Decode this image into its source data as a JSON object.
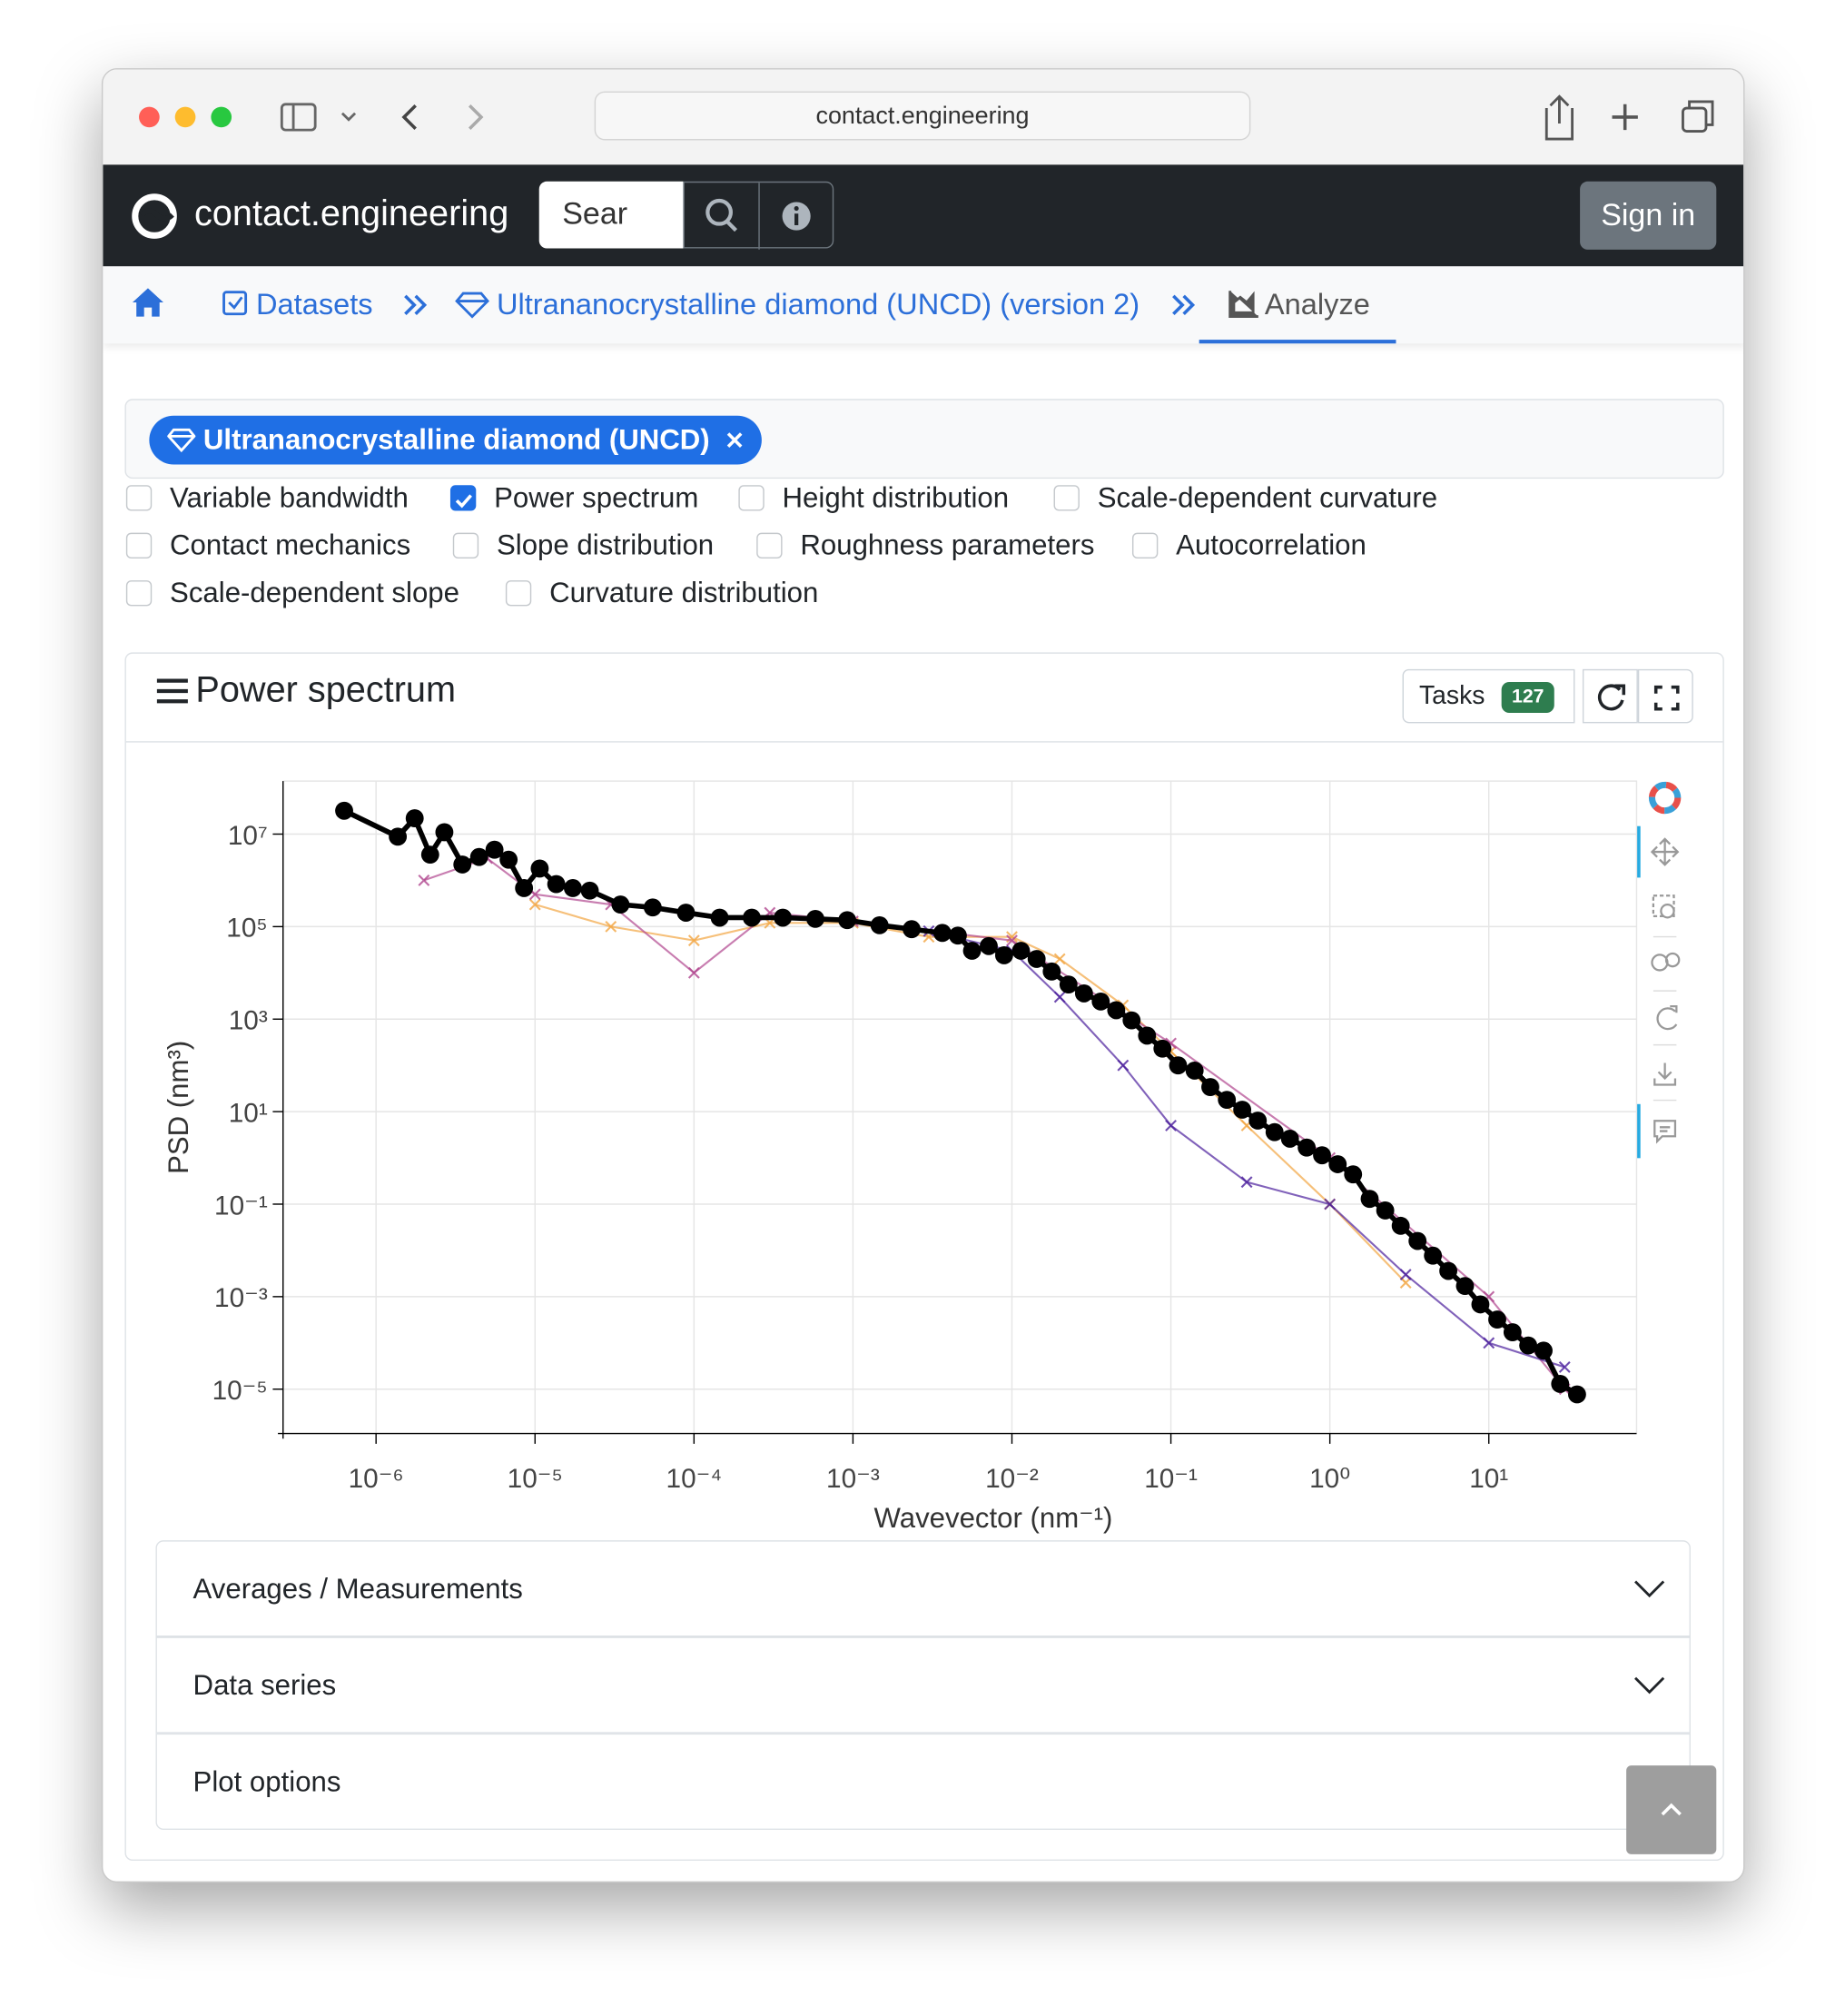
{
  "browser": {
    "url": "contact.engineering"
  },
  "navbar": {
    "brand": "contact.engineering",
    "search_placeholder": "Sear",
    "sign_in": "Sign in"
  },
  "breadcrumbs": [
    "Datasets",
    "Ultrananocrystalline diamond (UNCD) (version 2)",
    "Analyze"
  ],
  "selection_chip": "Ultrananocrystalline diamond (UNCD)",
  "analysis_options": [
    {
      "label": "Variable bandwidth",
      "checked": false
    },
    {
      "label": "Power spectrum",
      "checked": true
    },
    {
      "label": "Height distribution",
      "checked": false
    },
    {
      "label": "Scale-dependent curvature",
      "checked": false
    },
    {
      "label": "Contact mechanics",
      "checked": false
    },
    {
      "label": "Slope distribution",
      "checked": false
    },
    {
      "label": "Roughness parameters",
      "checked": false
    },
    {
      "label": "Autocorrelation",
      "checked": false
    },
    {
      "label": "Scale-dependent slope",
      "checked": false
    },
    {
      "label": "Curvature distribution",
      "checked": false
    }
  ],
  "card": {
    "title": "Power spectrum",
    "tasks_label": "Tasks",
    "tasks_count": 127
  },
  "chart_data": {
    "type": "line",
    "x_label": "Wavevector (nm⁻¹)",
    "y_label": "PSD (nm³)",
    "x_scale": "log",
    "y_scale": "log",
    "grid": true,
    "xlim": [
      2.6e-07,
      85
    ],
    "ylim": [
      1.1e-06,
      140000000.0
    ],
    "xticks": [
      {
        "value": 1e-06,
        "label": "10⁻⁶"
      },
      {
        "value": 1e-05,
        "label": "10⁻⁵"
      },
      {
        "value": 0.0001,
        "label": "10⁻⁴"
      },
      {
        "value": 0.001,
        "label": "10⁻³"
      },
      {
        "value": 0.01,
        "label": "10⁻²"
      },
      {
        "value": 0.1,
        "label": "10⁻¹"
      },
      {
        "value": 1,
        "label": "10⁰"
      },
      {
        "value": 10,
        "label": "10¹"
      }
    ],
    "yticks": [
      {
        "value": 10000000.0,
        "label": "10⁷"
      },
      {
        "value": 100000.0,
        "label": "10⁵"
      },
      {
        "value": 1000,
        "label": "10³"
      },
      {
        "value": 10,
        "label": "10¹"
      },
      {
        "value": 0.1,
        "label": "10⁻¹"
      },
      {
        "value": 0.001,
        "label": "10⁻³"
      },
      {
        "value": 1e-05,
        "label": "10⁻⁵"
      }
    ],
    "series": [
      {
        "color": "#f2a541",
        "marker": "x",
        "x": [
          1e-05,
          3e-05,
          0.0001,
          0.0003,
          0.001,
          0.003,
          0.01,
          0.02,
          0.05,
          0.1,
          0.3,
          1,
          3
        ],
        "values": [
          300000.0,
          100000.0,
          50000.0,
          120000.0,
          120000.0,
          60000.0,
          60000.0,
          20000.0,
          2000,
          200,
          5,
          0.1,
          0.002
        ]
      },
      {
        "color": "#b0468f",
        "marker": "x",
        "x": [
          2e-06,
          5e-06,
          1e-05,
          3e-05,
          0.0001,
          0.0003,
          0.001,
          0.01,
          0.1,
          1,
          10,
          30
        ],
        "values": [
          1000000.0,
          3000000.0,
          500000.0,
          300000.0,
          10000.0,
          200000.0,
          130000.0,
          50000.0,
          300,
          1,
          0.001,
          1e-05
        ]
      },
      {
        "color": "#4b1f9c",
        "marker": "x",
        "x": [
          0.003,
          0.01,
          0.02,
          0.05,
          0.1,
          0.3,
          1,
          3,
          10,
          30
        ],
        "values": [
          80000.0,
          30000.0,
          3000,
          100,
          5,
          0.3,
          0.1,
          0.003,
          0.0001,
          3e-05
        ]
      },
      {
        "color": "#000000",
        "marker": "circle",
        "x": [
          6.3e-07,
          1.37e-06,
          1.75e-06,
          2.19e-06,
          2.69e-06,
          3.49e-06,
          4.45e-06,
          5.56e-06,
          6.82e-06,
          8.53e-06,
          1.07e-05,
          1.36e-05,
          1.73e-05,
          2.21e-05,
          3.45e-05,
          5.5e-05,
          8.9e-05,
          0.000145,
          0.000231,
          0.000362,
          0.00058,
          0.00092,
          0.00147,
          0.00234,
          0.00365,
          0.00457,
          0.00561,
          0.00715,
          0.00893,
          0.0114,
          0.0143,
          0.0178,
          0.0227,
          0.0284,
          0.0362,
          0.0453,
          0.0566,
          0.0708,
          0.0885,
          0.111,
          0.141,
          0.177,
          0.225,
          0.281,
          0.352,
          0.449,
          0.561,
          0.715,
          0.893,
          1.12,
          1.4,
          1.78,
          2.23,
          2.79,
          3.56,
          4.45,
          5.56,
          7.08,
          8.85,
          11.3,
          14.1,
          17.7,
          22.1,
          28.1,
          35.9
        ],
        "values": [
          32000000.0,
          8800000.0,
          22000000.0,
          3600000.0,
          11000000.0,
          2200000.0,
          3200000.0,
          4600000.0,
          2800000.0,
          680000.0,
          1800000.0,
          830000.0,
          680000.0,
          600000.0,
          300000.0,
          260000.0,
          200000.0,
          156000.0,
          156000.0,
          156000.0,
          147000.0,
          138000.0,
          107000.0,
          88000.0,
          73000.0,
          64000.0,
          30000.0,
          38000.0,
          24000.0,
          30000.0,
          20000.0,
          10700.0,
          5600,
          3600,
          2400,
          1560,
          940,
          440,
          230,
          100,
          77,
          34,
          18,
          11,
          6.4,
          3.6,
          2.6,
          1.67,
          1.14,
          0.73,
          0.44,
          0.13,
          0.073,
          0.034,
          0.016,
          0.0077,
          0.0036,
          0.0017,
          0.00068,
          0.00032,
          0.00017,
          8.8e-05,
          6.8e-05,
          1.3e-05,
          7.7e-06
        ]
      }
    ]
  },
  "accordion": [
    "Averages / Measurements",
    "Data series",
    "Plot options"
  ]
}
